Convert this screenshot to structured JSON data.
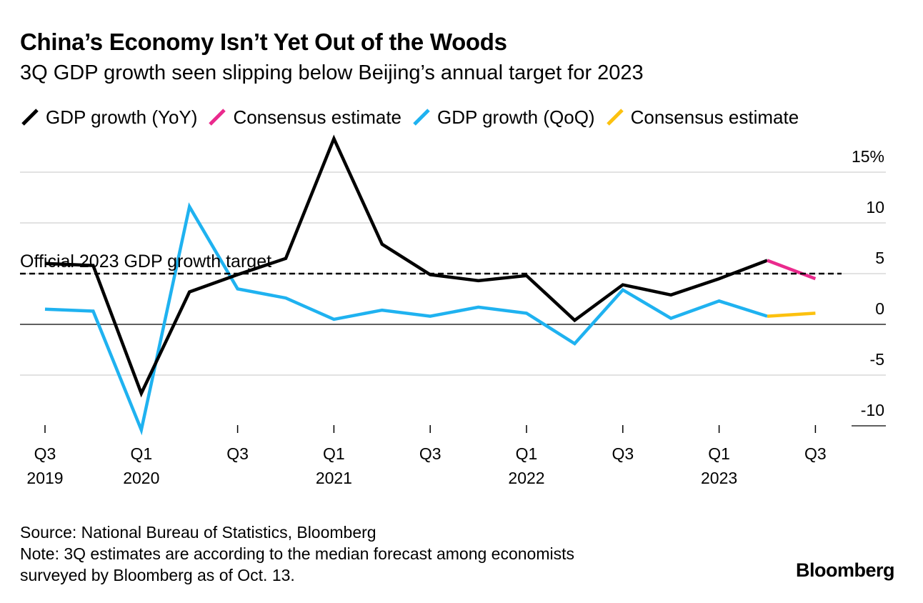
{
  "title": "China’s Economy Isn’t Yet Out of the Woods",
  "subtitle": "3Q GDP growth seen slipping below Beijing’s annual target for 2023",
  "legend": [
    {
      "label": "GDP growth (YoY)",
      "color": "#000000"
    },
    {
      "label": "Consensus estimate",
      "color": "#ea2a8d"
    },
    {
      "label": "GDP growth (QoQ)",
      "color": "#1fb2f0"
    },
    {
      "label": "Consensus estimate",
      "color": "#fcc10f"
    }
  ],
  "source": "Source: National Bureau of Statistics, Bloomberg",
  "note_line1": "Note: 3Q estimates are according to the median forecast among economists",
  "note_line2": "surveyed by Bloomberg as of Oct. 13.",
  "brand": "Bloomberg",
  "chart_data": {
    "type": "line",
    "categories": [
      "Q3 2019",
      "Q4 2019",
      "Q1 2020",
      "Q2 2020",
      "Q3 2020",
      "Q4 2020",
      "Q1 2021",
      "Q2 2021",
      "Q3 2021",
      "Q4 2021",
      "Q1 2022",
      "Q2 2022",
      "Q3 2022",
      "Q4 2022",
      "Q1 2023",
      "Q2 2023",
      "Q3 2023"
    ],
    "ylim": [
      -10,
      18.5
    ],
    "yticks": [
      {
        "value": 15,
        "label": "15%"
      },
      {
        "value": 10,
        "label": "10"
      },
      {
        "value": 5,
        "label": "5"
      },
      {
        "value": 0,
        "label": "0"
      },
      {
        "value": -5,
        "label": "-5"
      },
      {
        "value": -10,
        "label": "-10"
      }
    ],
    "xticks": [
      {
        "index": 0,
        "label": "Q3",
        "year": "2019"
      },
      {
        "index": 2,
        "label": "Q1",
        "year": "2020"
      },
      {
        "index": 4,
        "label": "Q3",
        "year": ""
      },
      {
        "index": 6,
        "label": "Q1",
        "year": "2021"
      },
      {
        "index": 8,
        "label": "Q3",
        "year": ""
      },
      {
        "index": 10,
        "label": "Q1",
        "year": "2022"
      },
      {
        "index": 12,
        "label": "Q3",
        "year": ""
      },
      {
        "index": 14,
        "label": "Q1",
        "year": "2023"
      },
      {
        "index": 16,
        "label": "Q3",
        "year": ""
      }
    ],
    "series": [
      {
        "name": "GDP growth (YoY)",
        "color": "#000000",
        "values": [
          6.0,
          5.8,
          -6.8,
          3.2,
          4.9,
          6.5,
          18.3,
          7.9,
          4.9,
          4.3,
          4.8,
          0.4,
          3.9,
          2.9,
          4.5,
          6.3,
          null
        ]
      },
      {
        "name": "Consensus estimate (YoY)",
        "color": "#ea2a8d",
        "values": [
          null,
          null,
          null,
          null,
          null,
          null,
          null,
          null,
          null,
          null,
          null,
          null,
          null,
          null,
          null,
          6.3,
          4.5
        ]
      },
      {
        "name": "GDP growth (QoQ)",
        "color": "#1fb2f0",
        "values": [
          1.5,
          1.3,
          -10.4,
          11.6,
          3.5,
          2.6,
          0.5,
          1.4,
          0.8,
          1.7,
          1.1,
          -1.9,
          3.4,
          0.6,
          2.3,
          0.8,
          null
        ]
      },
      {
        "name": "Consensus estimate (QoQ)",
        "color": "#fcc10f",
        "values": [
          null,
          null,
          null,
          null,
          null,
          null,
          null,
          null,
          null,
          null,
          null,
          null,
          null,
          null,
          null,
          0.8,
          1.1
        ]
      }
    ],
    "reference_line": {
      "value": 5,
      "label": "Official 2023 GDP growth target"
    }
  }
}
